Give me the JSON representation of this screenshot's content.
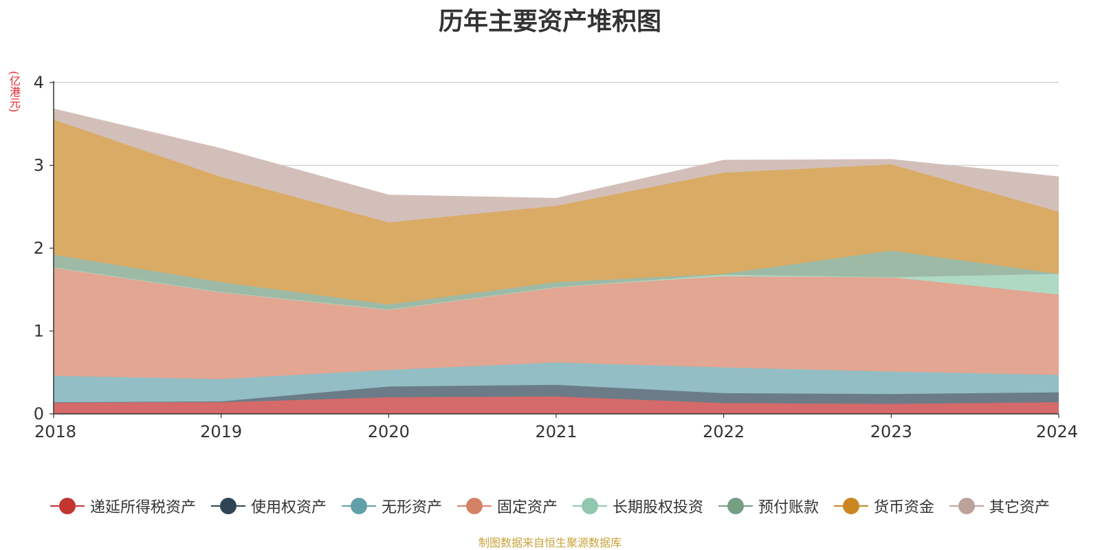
{
  "chart_data": {
    "type": "area",
    "stacked": true,
    "title": "历年主要资产堆积图",
    "unit_label": "(亿港元)",
    "x": [
      "2018",
      "2019",
      "2020",
      "2021",
      "2022",
      "2023",
      "2024"
    ],
    "ylim": [
      0,
      4
    ],
    "yticks": [
      "0",
      "1",
      "2",
      "3",
      "4"
    ],
    "grid": true,
    "legend_position": "bottom",
    "series": [
      {
        "name": "递延所得税资产",
        "color": "#c23531",
        "fill": "#d46a6a",
        "values": [
          0.14,
          0.14,
          0.2,
          0.21,
          0.13,
          0.12,
          0.14
        ]
      },
      {
        "name": "使用权资产",
        "color": "#2f4554",
        "fill": "#6b7c88",
        "values": [
          0.0,
          0.01,
          0.13,
          0.14,
          0.12,
          0.12,
          0.12
        ]
      },
      {
        "name": "无形资产",
        "color": "#61a0a8",
        "fill": "#93bec5",
        "values": [
          0.32,
          0.27,
          0.2,
          0.27,
          0.31,
          0.27,
          0.21
        ]
      },
      {
        "name": "固定资产",
        "color": "#d48265",
        "fill": "#e2a692",
        "values": [
          1.31,
          1.05,
          0.73,
          0.91,
          1.1,
          1.14,
          0.97
        ]
      },
      {
        "name": "长期股权投资",
        "color": "#91c7ae",
        "fill": "#b0d9c4",
        "values": [
          0.0,
          0.0,
          0.0,
          0.0,
          0.02,
          0.0,
          0.25
        ]
      },
      {
        "name": "预付账款",
        "color": "#749f83",
        "fill": "#9dbaa6",
        "values": [
          0.15,
          0.12,
          0.06,
          0.06,
          0.01,
          0.32,
          0.0
        ]
      },
      {
        "name": "货币资金",
        "color": "#ca8622",
        "fill": "#daab65",
        "values": [
          1.63,
          1.27,
          0.99,
          0.92,
          1.22,
          1.04,
          0.75
        ]
      },
      {
        "name": "其它资产",
        "color": "#bda29a",
        "fill": "#d3bfb9",
        "values": [
          0.13,
          0.34,
          0.33,
          0.09,
          0.15,
          0.06,
          0.42
        ]
      }
    ]
  },
  "source_note": "制图数据来自恒生聚源数据库"
}
